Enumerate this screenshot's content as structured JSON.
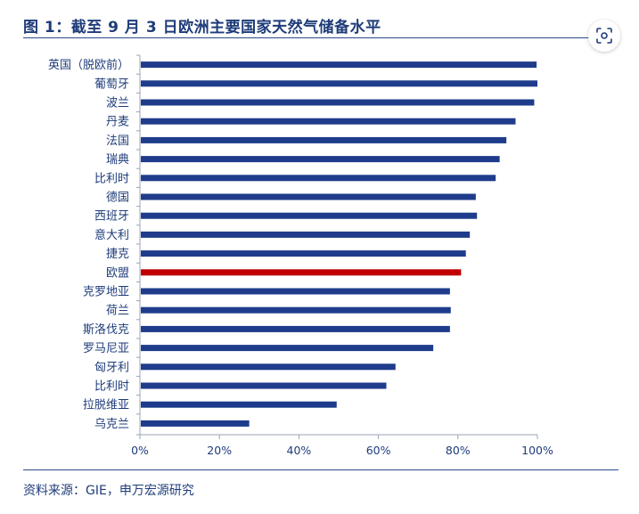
{
  "header": {
    "title": "图 1：截至 9 月 3 日欧洲主要国家天然气储备水平"
  },
  "icons": {
    "scan": "scan-text-icon"
  },
  "colors": {
    "bar": "#1f3c8c",
    "highlight_bar": "#c00000",
    "text": "#1f3c7a",
    "axis": "#9aa3b5"
  },
  "chart_data": {
    "type": "bar",
    "orientation": "horizontal",
    "title": "图 1：截至 9 月 3 日欧洲主要国家天然气储备水平",
    "xlabel": "",
    "ylabel": "",
    "xlim": [
      0,
      100
    ],
    "x_tick_labels": [
      "0%",
      "20%",
      "40%",
      "60%",
      "80%",
      "100%"
    ],
    "x_ticks": [
      0,
      20,
      40,
      60,
      80,
      100
    ],
    "grid": false,
    "legend": "none",
    "categories": [
      "英国（脱欧前）",
      "葡萄牙",
      "波兰",
      "丹麦",
      "法国",
      "瑞典",
      "比利时",
      "德国",
      "西班牙",
      "意大利",
      "捷克",
      "欧盟",
      "克罗地亚",
      "荷兰",
      "斯洛伐克",
      "罗马尼亚",
      "匈牙利",
      "比利时",
      "拉脱维亚",
      "乌克兰"
    ],
    "values": [
      99.8,
      100,
      99.2,
      94.5,
      92.2,
      90.5,
      89.5,
      84.5,
      84.8,
      83,
      82,
      80.8,
      78,
      78.2,
      78,
      73.8,
      64.3,
      62,
      49.5,
      27.5
    ],
    "highlight_category": "欧盟"
  },
  "footer": {
    "source": "资料来源：GIE，申万宏源研究"
  }
}
